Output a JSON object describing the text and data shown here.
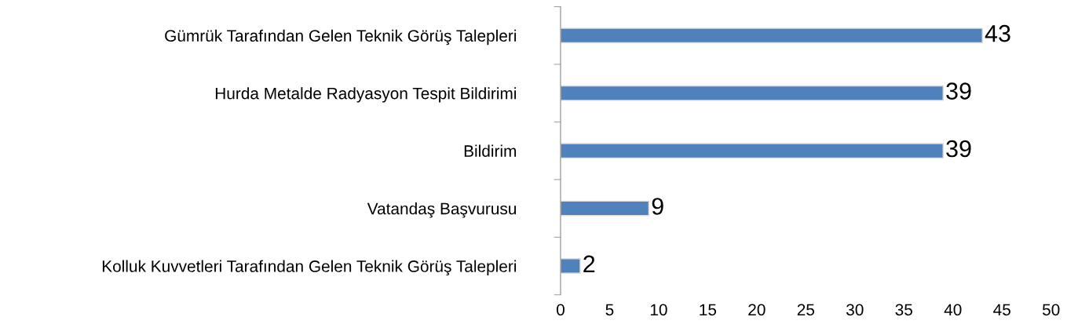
{
  "chart_data": {
    "type": "bar",
    "orientation": "horizontal",
    "categories": [
      "Gümrük Tarafından Gelen Teknik Görüş Talepleri",
      "Hurda Metalde Radyasyon Tespit Bildirimi",
      "Bildirim",
      "Vatandaş Başvurusu",
      "Kolluk Kuvvetleri Tarafından Gelen Teknik Görüş Talepleri"
    ],
    "values": [
      43,
      39,
      39,
      9,
      2
    ],
    "color": "#4f81bd",
    "xlim": [
      0,
      50
    ],
    "xticks": [
      0,
      5,
      10,
      15,
      20,
      25,
      30,
      35,
      40,
      45,
      50
    ],
    "data_labels": true,
    "grid": false,
    "legend": false
  }
}
